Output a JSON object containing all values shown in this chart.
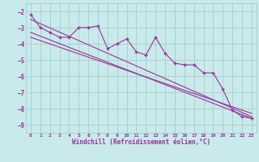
{
  "bg_color": "#c8eaea",
  "line_color": "#993399",
  "grid_color": "#aacccc",
  "xlabel": "Windchill (Refroidissement éolien,°C)",
  "ylim": [
    -9.5,
    -1.5
  ],
  "xlim": [
    -0.5,
    23.5
  ],
  "yticks": [
    -9,
    -8,
    -7,
    -6,
    -5,
    -4,
    -3,
    -2
  ],
  "xticks": [
    0,
    1,
    2,
    3,
    4,
    5,
    6,
    7,
    8,
    9,
    10,
    11,
    12,
    13,
    14,
    15,
    16,
    17,
    18,
    19,
    20,
    21,
    22,
    23
  ],
  "data_line": [
    -2.2,
    -3.0,
    -3.3,
    -3.6,
    -3.6,
    -3.0,
    -3.0,
    -2.9,
    -4.3,
    -4.0,
    -3.7,
    -4.5,
    -4.7,
    -3.6,
    -4.6,
    -5.2,
    -5.3,
    -5.3,
    -5.8,
    -5.8,
    -6.8,
    -8.1,
    -8.5,
    -8.6
  ],
  "trend1_x": [
    0,
    23
  ],
  "trend1_y": [
    -2.5,
    -8.5
  ],
  "trend2_x": [
    0,
    23
  ],
  "trend2_y": [
    -3.3,
    -8.6
  ],
  "trend3_x": [
    0,
    23
  ],
  "trend3_y": [
    -3.6,
    -8.3
  ]
}
